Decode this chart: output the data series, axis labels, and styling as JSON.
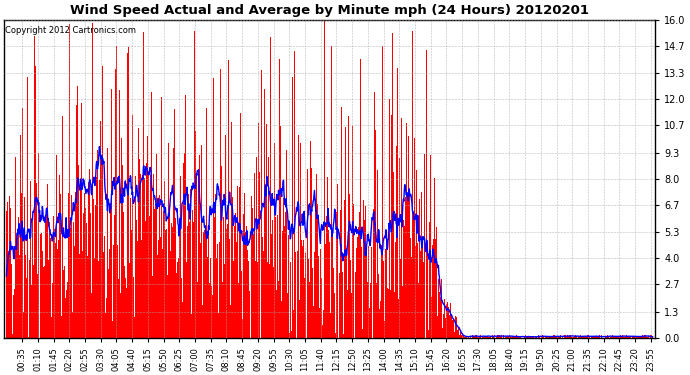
{
  "title": "Wind Speed Actual and Average by Minute mph (24 Hours) 20120201",
  "copyright": "Copyright 2012 Cartronics.com",
  "yticks": [
    0.0,
    1.3,
    2.7,
    4.0,
    5.3,
    6.7,
    8.0,
    9.3,
    10.7,
    12.0,
    13.3,
    14.7,
    16.0
  ],
  "ylim": [
    0.0,
    16.0
  ],
  "bar_color": "#ff0000",
  "line_color": "#0000ff",
  "background_color": "#ffffff",
  "grid_color": "#aaaaaa",
  "figsize": [
    6.9,
    3.75
  ],
  "dpi": 100
}
